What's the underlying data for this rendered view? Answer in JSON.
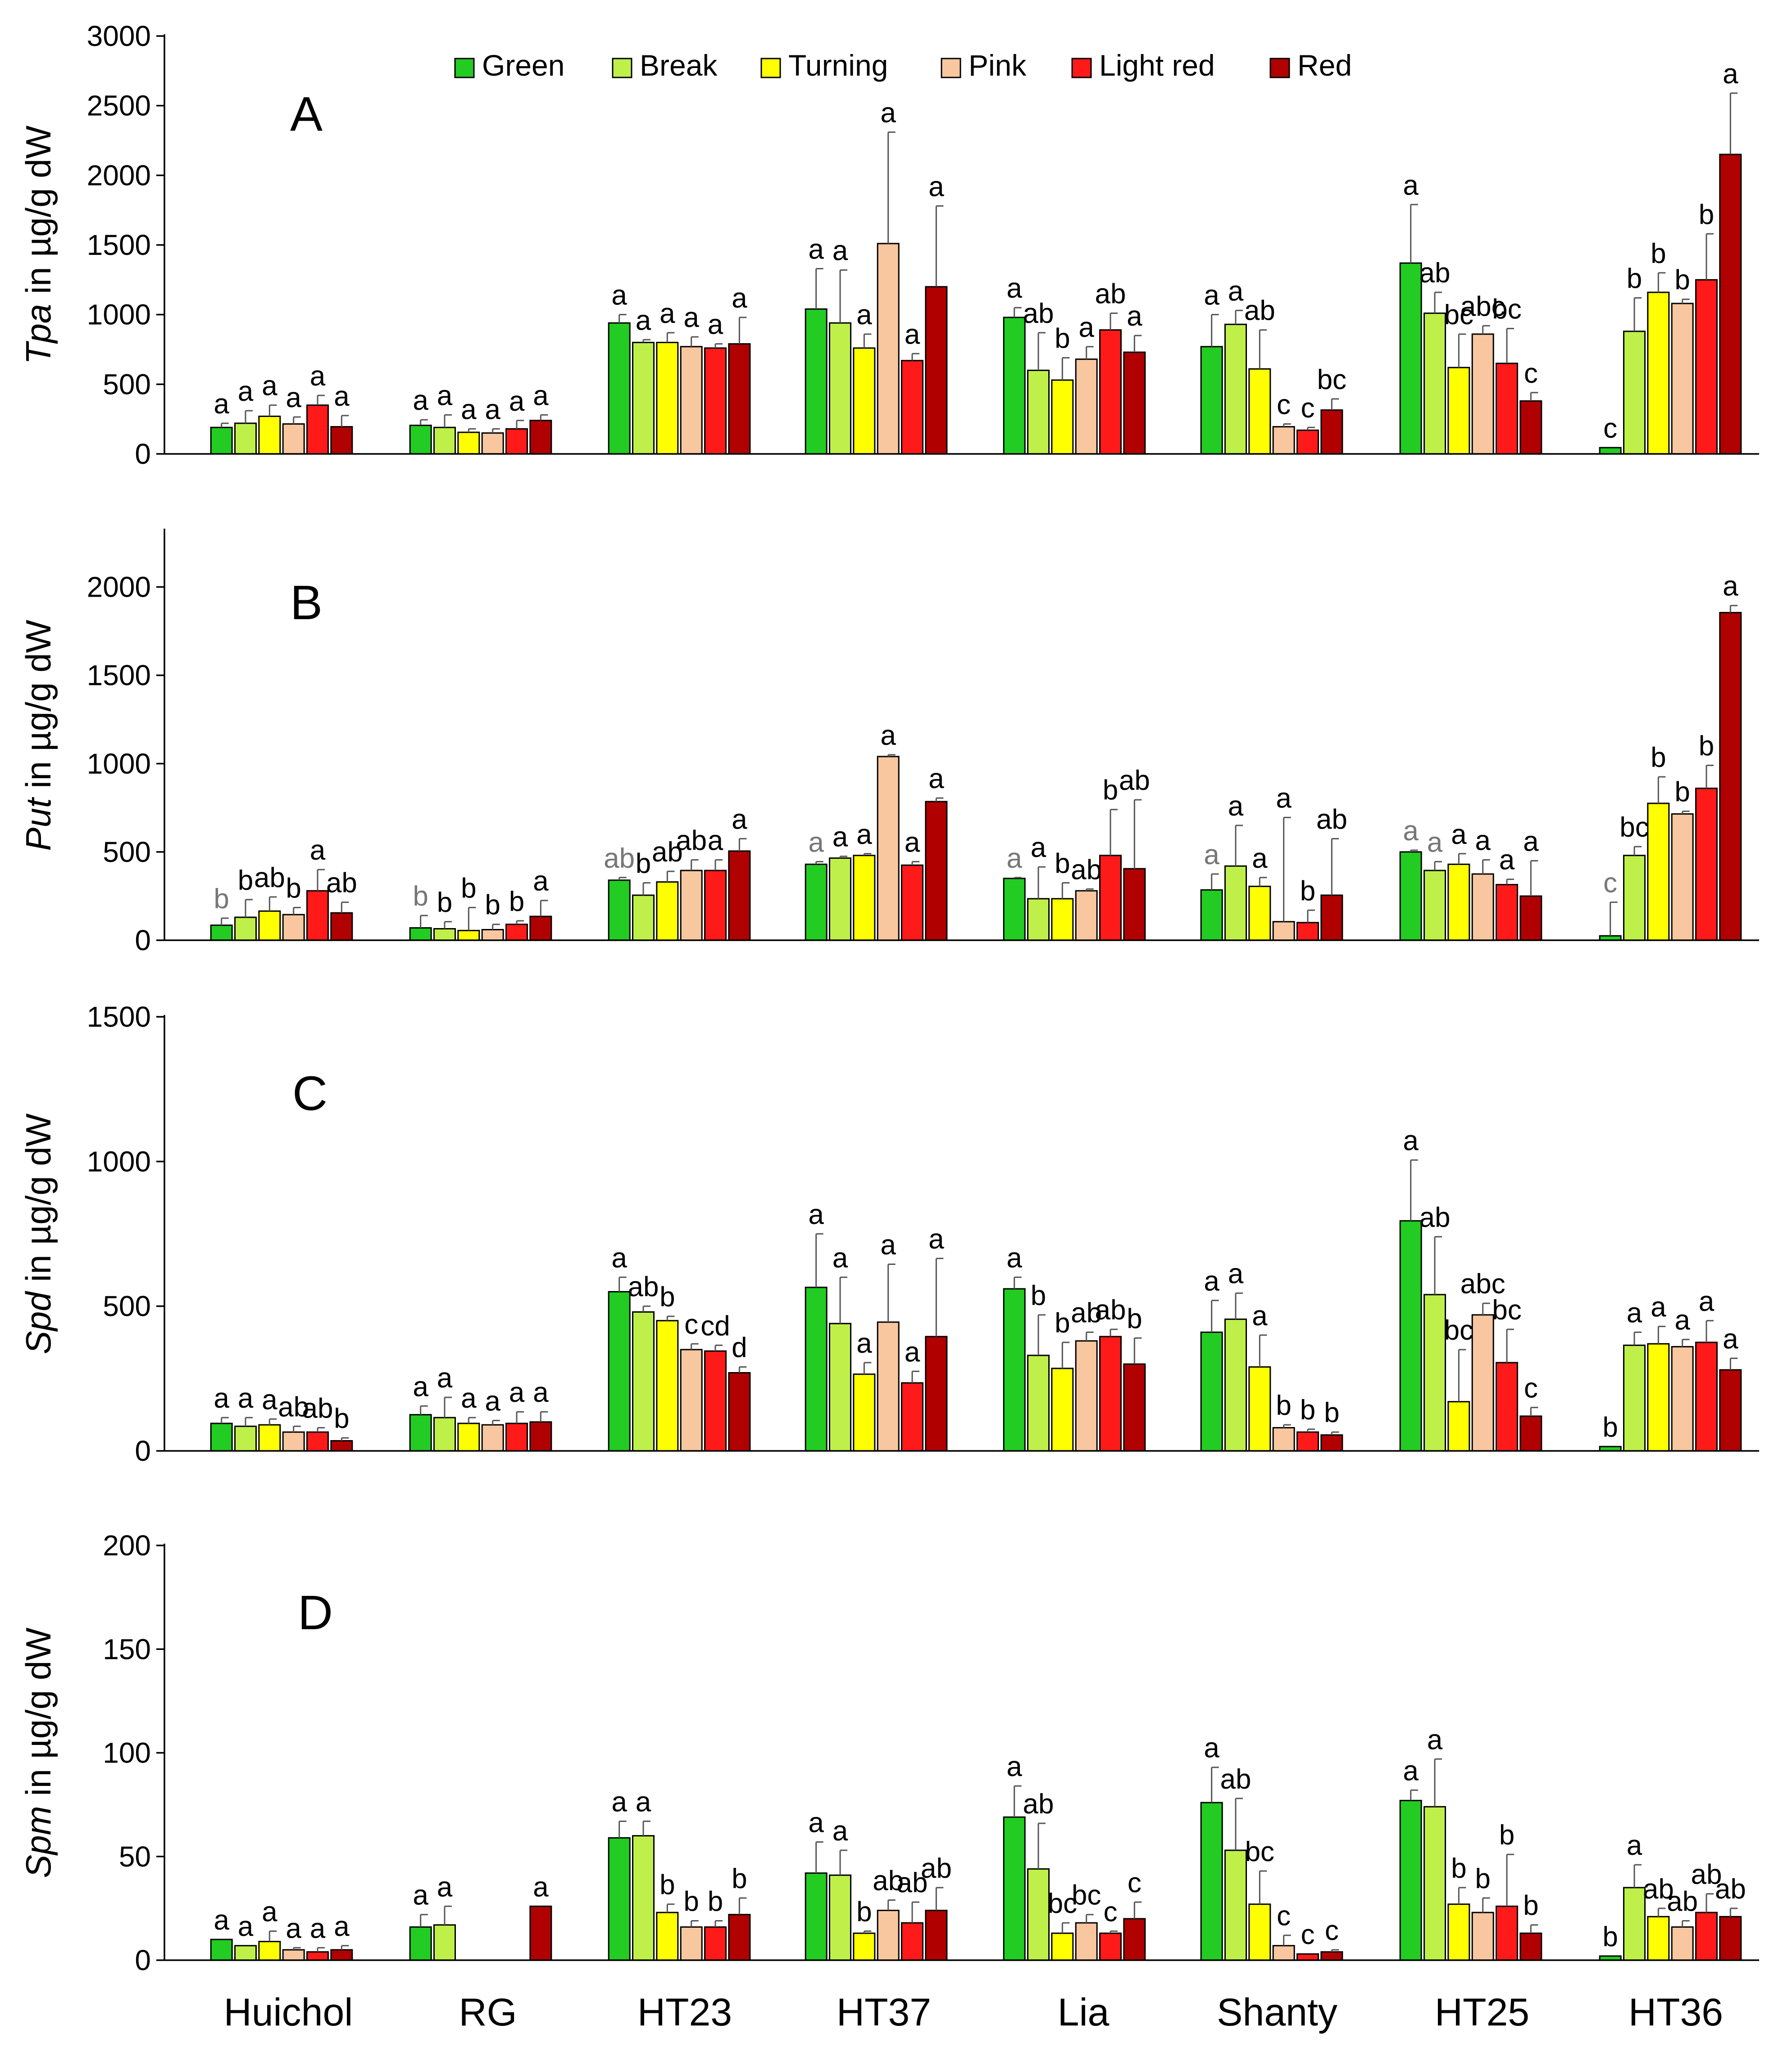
{
  "legend": {
    "items": [
      {
        "name": "Green",
        "color": "#22cc22"
      },
      {
        "name": "Break",
        "color": "#bff04a"
      },
      {
        "name": "Turning",
        "color": "#ffff00"
      },
      {
        "name": "Pink",
        "color": "#f9c79f"
      },
      {
        "name": "Light red",
        "color": "#ff1a1a"
      },
      {
        "name": "Red",
        "color": "#b00000"
      }
    ],
    "placement": "top-center"
  },
  "chart_data": [
    {
      "panel": "A",
      "type": "bar",
      "ylabel": {
        "italic": "Tpa",
        "rest": " in µg/g dW"
      },
      "ylim": [
        0,
        3000
      ],
      "yticks": [
        "0",
        "500",
        "1000",
        "1500",
        "2000",
        "2500",
        "3000"
      ],
      "categories": [
        "Huichol",
        "RG",
        "HT23",
        "HT37",
        "Lia",
        "Shanty",
        "HT25",
        "HT36"
      ],
      "series": [
        {
          "name": "Green",
          "values": [
            190,
            205,
            940,
            1040,
            980,
            770,
            1370,
            45
          ],
          "errors": [
            30,
            40,
            60,
            290,
            70,
            230,
            420,
            0
          ],
          "letters": [
            "a",
            "a",
            "a",
            "a",
            "a",
            "a",
            "a",
            "c"
          ]
        },
        {
          "name": "Break",
          "values": [
            220,
            190,
            800,
            940,
            600,
            930,
            1010,
            880
          ],
          "errors": [
            90,
            90,
            20,
            380,
            270,
            100,
            150,
            240
          ],
          "letters": [
            "a",
            "a",
            "a",
            "a",
            "ab",
            "a",
            "ab",
            "b"
          ]
        },
        {
          "name": "Turning",
          "values": [
            270,
            155,
            800,
            760,
            530,
            610,
            620,
            1160
          ],
          "errors": [
            80,
            25,
            70,
            100,
            160,
            280,
            240,
            140
          ],
          "letters": [
            "a",
            "a",
            "a",
            "a",
            "b",
            "ab",
            "bc",
            "b"
          ]
        },
        {
          "name": "Pink",
          "values": [
            215,
            150,
            770,
            1510,
            680,
            195,
            860,
            1080
          ],
          "errors": [
            50,
            30,
            70,
            800,
            90,
            20,
            60,
            30
          ],
          "letters": [
            "a",
            "a",
            "a",
            "a",
            "a",
            "c",
            "abc",
            "b"
          ]
        },
        {
          "name": "Light red",
          "values": [
            350,
            180,
            760,
            670,
            890,
            170,
            650,
            1250
          ],
          "errors": [
            70,
            60,
            30,
            50,
            120,
            20,
            250,
            330
          ],
          "letters": [
            "a",
            "a",
            "a",
            "a",
            "ab",
            "c",
            "bc",
            "b"
          ]
        },
        {
          "name": "Red",
          "values": [
            195,
            240,
            790,
            1200,
            730,
            315,
            380,
            2150
          ],
          "errors": [
            80,
            40,
            190,
            580,
            120,
            80,
            60,
            440
          ],
          "letters": [
            "a",
            "a",
            "a",
            "a",
            "a",
            "bc",
            "c",
            "a"
          ]
        }
      ]
    },
    {
      "panel": "B",
      "type": "bar",
      "ylabel": {
        "italic": "Put",
        "rest": " in  µg/g dW"
      },
      "ylim": [
        0,
        2320
      ],
      "yticks": [
        "0",
        "500",
        "1000",
        "1500",
        "2000"
      ],
      "categories": [
        "Huichol",
        "RG",
        "HT23",
        "HT37",
        "Lia",
        "Shanty",
        "HT25",
        "HT36"
      ],
      "series": [
        {
          "name": "Green",
          "values": [
            85,
            70,
            340,
            430,
            350,
            285,
            500,
            25
          ],
          "errors": [
            40,
            70,
            15,
            15,
            5,
            90,
            10,
            190
          ],
          "letters": [
            "b",
            "b",
            "ab",
            "a",
            "a",
            "a",
            "a",
            "c"
          ]
        },
        {
          "name": "Break",
          "values": [
            130,
            65,
            255,
            465,
            235,
            420,
            395,
            480
          ],
          "errors": [
            100,
            40,
            70,
            10,
            180,
            230,
            50,
            50
          ],
          "letters": [
            "b",
            "b",
            "b",
            "a",
            "a",
            "a",
            "a",
            "bc"
          ]
        },
        {
          "name": "Turning",
          "values": [
            165,
            55,
            330,
            480,
            235,
            305,
            430,
            775
          ],
          "errors": [
            80,
            130,
            60,
            10,
            90,
            50,
            60,
            150
          ],
          "letters": [
            "ab",
            "b",
            "ab",
            "a",
            "b",
            "a",
            "a",
            "b"
          ]
        },
        {
          "name": "Pink",
          "values": [
            145,
            60,
            395,
            1040,
            280,
            105,
            375,
            715
          ],
          "errors": [
            40,
            30,
            60,
            10,
            10,
            590,
            80,
            15
          ],
          "letters": [
            "b",
            "b",
            "ab",
            "a",
            "ab",
            "a",
            "a",
            "b"
          ]
        },
        {
          "name": "Light red",
          "values": [
            280,
            90,
            395,
            425,
            480,
            100,
            315,
            860
          ],
          "errors": [
            120,
            20,
            60,
            20,
            260,
            70,
            30,
            130
          ],
          "letters": [
            "a",
            "b",
            "a",
            "a",
            "b",
            "b",
            "a",
            "b"
          ]
        },
        {
          "name": "Red",
          "values": [
            155,
            135,
            505,
            785,
            405,
            255,
            250,
            1855
          ],
          "errors": [
            60,
            90,
            70,
            20,
            390,
            320,
            200,
            40
          ],
          "letters": [
            "ab",
            "a",
            "a",
            "a",
            "ab",
            "ab",
            "a",
            "a"
          ]
        }
      ],
      "grey_letters": [
        "Green:0",
        "Green:1",
        "Green:2",
        "Green:3",
        "Green:4",
        "Green:5",
        "Green:6",
        "Green:7",
        "Break:6"
      ]
    },
    {
      "panel": "C",
      "type": "bar",
      "ylabel": {
        "italic": "Spd",
        "rest": " in  µg/g dW"
      },
      "ylim": [
        0,
        1500
      ],
      "yticks": [
        "0",
        "500",
        "1000",
        "1500"
      ],
      "categories": [
        "Huichol",
        "RG",
        "HT23",
        "HT37",
        "Lia",
        "Shanty",
        "HT25",
        "HT36"
      ],
      "series": [
        {
          "name": "Green",
          "values": [
            95,
            125,
            550,
            565,
            560,
            410,
            795,
            15
          ],
          "errors": [
            20,
            30,
            50,
            185,
            40,
            110,
            210,
            0
          ],
          "letters": [
            "a",
            "a",
            "a",
            "a",
            "a",
            "a",
            "a",
            "b"
          ]
        },
        {
          "name": "Break",
          "values": [
            85,
            115,
            480,
            440,
            330,
            455,
            540,
            365
          ],
          "errors": [
            30,
            70,
            20,
            160,
            140,
            90,
            200,
            45
          ],
          "letters": [
            "a",
            "a",
            "ab",
            "a",
            "b",
            "a",
            "ab",
            "a"
          ]
        },
        {
          "name": "Turning",
          "values": [
            90,
            95,
            450,
            265,
            285,
            290,
            170,
            370
          ],
          "errors": [
            20,
            20,
            15,
            40,
            90,
            110,
            180,
            60
          ],
          "letters": [
            "a",
            "a",
            "b",
            "a",
            "b",
            "a",
            "bc",
            "a"
          ]
        },
        {
          "name": "Pink",
          "values": [
            65,
            90,
            350,
            445,
            380,
            80,
            470,
            360
          ],
          "errors": [
            20,
            15,
            20,
            200,
            30,
            10,
            40,
            25
          ],
          "letters": [
            "ab",
            "a",
            "c",
            "a",
            "ab",
            "b",
            "abc",
            "a"
          ]
        },
        {
          "name": "Light red",
          "values": [
            65,
            95,
            345,
            235,
            395,
            65,
            305,
            375
          ],
          "errors": [
            15,
            40,
            20,
            40,
            25,
            10,
            115,
            75
          ],
          "letters": [
            "ab",
            "a",
            "cd",
            "a",
            "ab",
            "b",
            "bc",
            "a"
          ]
        },
        {
          "name": "Red",
          "values": [
            35,
            100,
            270,
            395,
            300,
            55,
            120,
            280
          ],
          "errors": [
            10,
            35,
            20,
            270,
            90,
            10,
            30,
            40
          ],
          "letters": [
            "b",
            "a",
            "d",
            "a",
            "b",
            "b",
            "c",
            "a"
          ]
        }
      ]
    },
    {
      "panel": "D",
      "type": "bar",
      "ylabel": {
        "italic": "Spm",
        "rest": " in µg/g dW"
      },
      "ylim": [
        0,
        200
      ],
      "yticks": [
        "0",
        "50",
        "100",
        "150",
        "200"
      ],
      "categories": [
        "Huichol",
        "RG",
        "HT23",
        "HT37",
        "Lia",
        "Shanty",
        "HT25",
        "HT36"
      ],
      "series": [
        {
          "name": "Green",
          "values": [
            10,
            16,
            59,
            42,
            69,
            76,
            77,
            2
          ],
          "errors": [
            0,
            6,
            8,
            15,
            15,
            17,
            5,
            0
          ],
          "letters": [
            "a",
            "a",
            "a",
            "a",
            "a",
            "a",
            "a",
            "b"
          ]
        },
        {
          "name": "Break",
          "values": [
            7,
            17,
            60,
            41,
            44,
            53,
            74,
            35
          ],
          "errors": [
            0,
            9,
            7,
            12,
            22,
            25,
            23,
            11
          ],
          "letters": [
            "a",
            "a",
            "a",
            "a",
            "ab",
            "ab",
            "a",
            "a"
          ]
        },
        {
          "name": "Turning",
          "values": [
            9,
            null,
            23,
            13,
            13,
            27,
            27,
            21
          ],
          "errors": [
            5,
            null,
            4,
            1,
            5,
            16,
            8,
            4
          ],
          "letters": [
            "a",
            "",
            "b",
            "b",
            "bc",
            "bc",
            "b",
            "ab"
          ]
        },
        {
          "name": "Pink",
          "values": [
            5,
            null,
            16,
            24,
            18,
            7,
            23,
            16
          ],
          "errors": [
            1,
            null,
            3,
            5,
            4,
            5,
            7,
            3
          ],
          "letters": [
            "a",
            "",
            "b",
            "ab",
            "bc",
            "c",
            "b",
            "ab"
          ]
        },
        {
          "name": "Light red",
          "values": [
            4,
            null,
            16,
            18,
            13,
            3,
            26,
            23
          ],
          "errors": [
            2,
            null,
            3,
            10,
            1,
            0,
            25,
            9
          ],
          "letters": [
            "a",
            "",
            "b",
            "ab",
            "c",
            "c",
            "b",
            "ab"
          ]
        },
        {
          "name": "Red",
          "values": [
            5,
            26,
            22,
            24,
            20,
            4,
            13,
            21
          ],
          "errors": [
            2,
            0,
            8,
            11,
            8,
            1,
            4,
            4
          ],
          "letters": [
            "a",
            "a",
            "b",
            "ab",
            "c",
            "c",
            "b",
            "ab"
          ]
        }
      ]
    }
  ]
}
